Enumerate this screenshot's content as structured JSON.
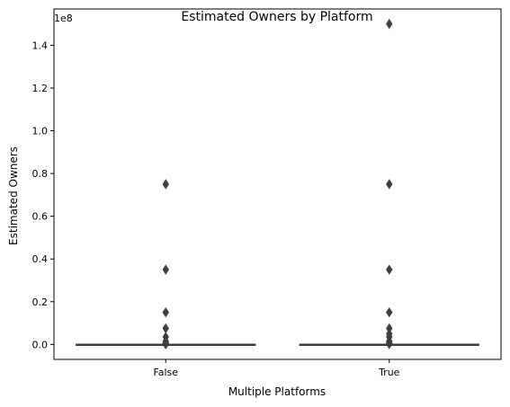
{
  "chart_data": {
    "type": "box",
    "title": "Estimated Owners by Platform",
    "xlabel": "Multiple Platforms",
    "ylabel": "Estimated Owners",
    "offset_label": "1e8",
    "categories": [
      "False",
      "True"
    ],
    "ylim": [
      -7000000,
      157000000
    ],
    "yticks": [
      0,
      20000000,
      40000000,
      60000000,
      80000000,
      100000000,
      120000000,
      140000000
    ],
    "ytick_labels": [
      "0.0",
      "0.2",
      "0.4",
      "0.6",
      "0.8",
      "1.0",
      "1.2",
      "1.4"
    ],
    "grid": false,
    "box_color": "#3f3f3f",
    "series": [
      {
        "category": "False",
        "q1": 0,
        "median": 0,
        "q3": 20000,
        "whisker_low": 0,
        "whisker_high": 50000,
        "outliers": [
          75000000,
          35000000,
          15000000,
          7500000,
          3500000,
          1500000,
          750000,
          350000,
          150000,
          75000
        ]
      },
      {
        "category": "True",
        "q1": 0,
        "median": 0,
        "q3": 50000,
        "whisker_low": 0,
        "whisker_high": 100000,
        "outliers": [
          150000000,
          75000000,
          35000000,
          15000000,
          7500000,
          5000000,
          3500000,
          1500000,
          750000,
          350000,
          150000
        ]
      }
    ]
  }
}
